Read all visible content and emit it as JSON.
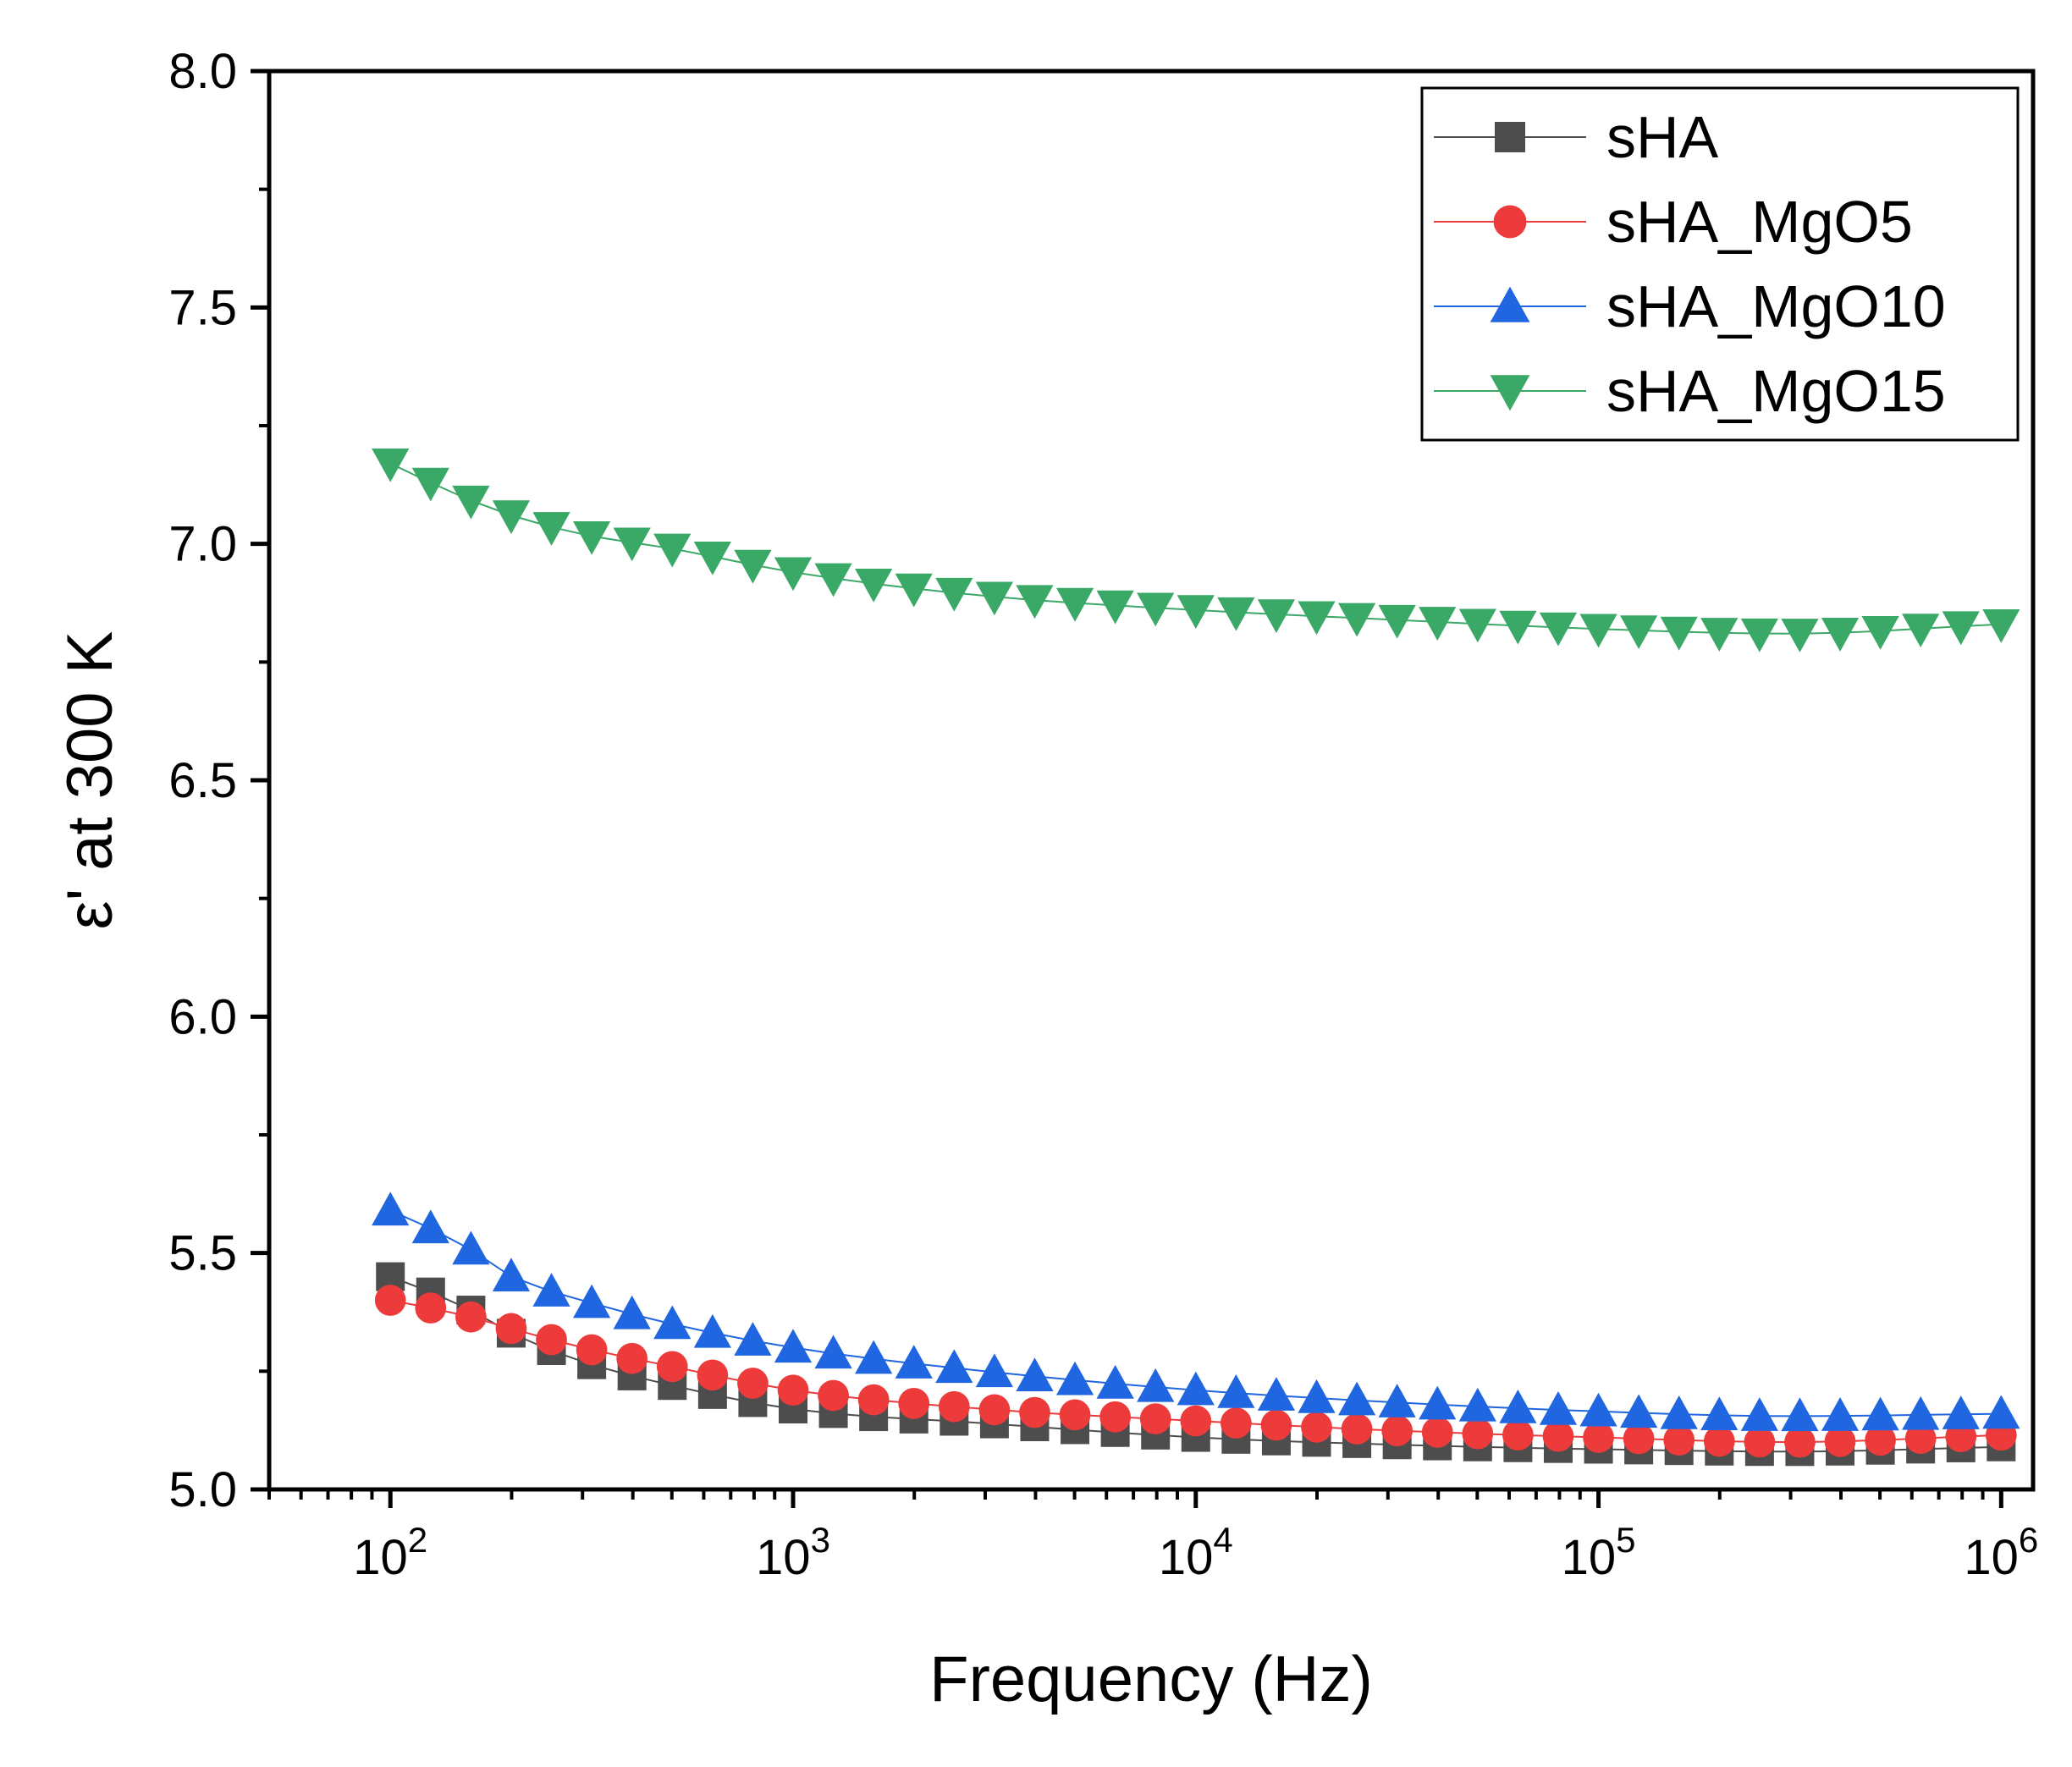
{
  "chart_data": {
    "type": "scatter",
    "title": "",
    "xlabel": "Frequency (Hz)",
    "ylabel": "ε' at 300 K",
    "xscale": "log",
    "xlim": [
      50,
      1200000
    ],
    "ylim": [
      5.0,
      8.0
    ],
    "yticks": [
      "5.0",
      "5.5",
      "6.0",
      "6.5",
      "7.0",
      "7.5",
      "8.0"
    ],
    "xticks": [
      {
        "value": 100,
        "base": "10",
        "exp": "2"
      },
      {
        "value": 1000,
        "base": "10",
        "exp": "3"
      },
      {
        "value": 10000,
        "base": "10",
        "exp": "4"
      },
      {
        "value": 100000,
        "base": "10",
        "exp": "5"
      },
      {
        "value": 1000000,
        "base": "10",
        "exp": "6"
      }
    ],
    "legend_position": "top-right",
    "series": [
      {
        "name": "sHA",
        "marker": "square",
        "color": "#4d4d4d",
        "points": [
          [
            100,
            5.45
          ],
          [
            150,
            5.39
          ],
          [
            200,
            5.33
          ],
          [
            300,
            5.27
          ],
          [
            500,
            5.22
          ],
          [
            1000,
            5.17
          ],
          [
            3000,
            5.14
          ],
          [
            10000,
            5.11
          ],
          [
            30000,
            5.095
          ],
          [
            100000,
            5.085
          ],
          [
            300000,
            5.08
          ],
          [
            1000000,
            5.09
          ]
        ]
      },
      {
        "name": "sHA_MgO5",
        "marker": "circle",
        "color": "#ed3b3b",
        "points": [
          [
            100,
            5.4
          ],
          [
            150,
            5.37
          ],
          [
            200,
            5.34
          ],
          [
            300,
            5.3
          ],
          [
            500,
            5.26
          ],
          [
            1000,
            5.21
          ],
          [
            3000,
            5.17
          ],
          [
            10000,
            5.145
          ],
          [
            30000,
            5.125
          ],
          [
            100000,
            5.11
          ],
          [
            300000,
            5.1
          ],
          [
            1000000,
            5.115
          ]
        ]
      },
      {
        "name": "sHA_MgO10",
        "marker": "triangle-up",
        "color": "#1f66e0",
        "points": [
          [
            100,
            5.59
          ],
          [
            150,
            5.52
          ],
          [
            200,
            5.45
          ],
          [
            300,
            5.4
          ],
          [
            500,
            5.35
          ],
          [
            1000,
            5.3
          ],
          [
            3000,
            5.25
          ],
          [
            10000,
            5.21
          ],
          [
            30000,
            5.185
          ],
          [
            100000,
            5.165
          ],
          [
            300000,
            5.155
          ],
          [
            1000000,
            5.16
          ]
        ]
      },
      {
        "name": "sHA_MgO15",
        "marker": "triangle-down",
        "color": "#3aa867",
        "points": [
          [
            100,
            7.17
          ],
          [
            150,
            7.1
          ],
          [
            200,
            7.06
          ],
          [
            300,
            7.02
          ],
          [
            500,
            6.99
          ],
          [
            1000,
            6.94
          ],
          [
            3000,
            6.89
          ],
          [
            10000,
            6.86
          ],
          [
            30000,
            6.84
          ],
          [
            100000,
            6.82
          ],
          [
            300000,
            6.81
          ],
          [
            1000000,
            6.83
          ]
        ]
      }
    ]
  }
}
